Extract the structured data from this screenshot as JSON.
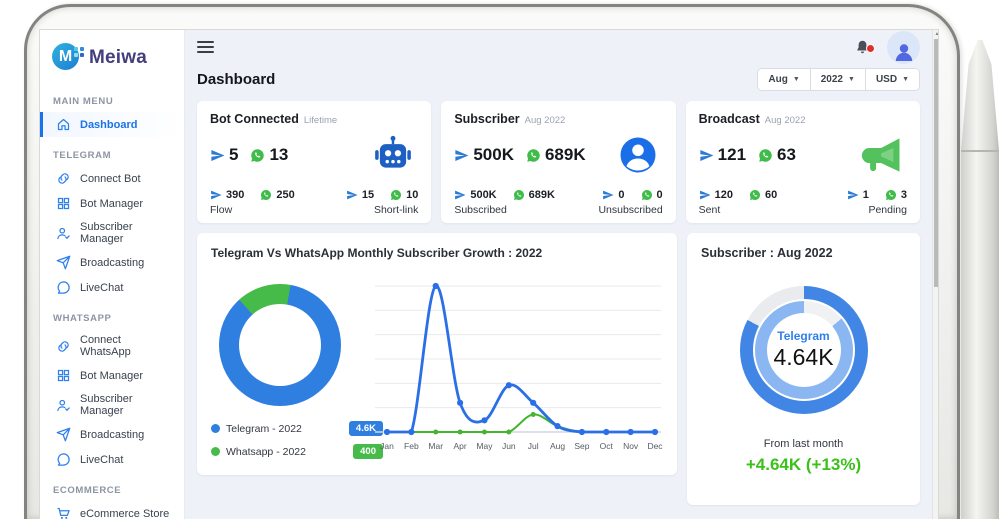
{
  "brand": {
    "name": "Meiwa"
  },
  "sidebar": {
    "sections": [
      {
        "label": "MAIN MENU",
        "items": [
          {
            "label": "Dashboard",
            "icon": "home",
            "active": true
          }
        ]
      },
      {
        "label": "TELEGRAM",
        "items": [
          {
            "label": "Connect Bot",
            "icon": "link"
          },
          {
            "label": "Bot Manager",
            "icon": "grid"
          },
          {
            "label": "Subscriber Manager",
            "icon": "user"
          },
          {
            "label": "Broadcasting",
            "icon": "send"
          },
          {
            "label": "LiveChat",
            "icon": "chat"
          }
        ]
      },
      {
        "label": "WHATSAPP",
        "items": [
          {
            "label": "Connect WhatsApp",
            "icon": "link"
          },
          {
            "label": "Bot Manager",
            "icon": "grid"
          },
          {
            "label": "Subscriber Manager",
            "icon": "user"
          },
          {
            "label": "Broadcasting",
            "icon": "send"
          },
          {
            "label": "LiveChat",
            "icon": "chat"
          }
        ]
      },
      {
        "label": "ECOMMERCE",
        "items": [
          {
            "label": "eCommerce Store",
            "icon": "cart"
          }
        ]
      }
    ]
  },
  "header": {
    "title": "Dashboard",
    "filters": [
      "Aug",
      "2022",
      "USD"
    ]
  },
  "stat_cards": [
    {
      "title": "Bot Connected",
      "period": "Lifetime",
      "illustration": "robot-icon",
      "telegram": "5",
      "whatsapp": "13",
      "groups": [
        {
          "telegram": "390",
          "whatsapp": "250",
          "label": "Flow"
        },
        {
          "telegram": "15",
          "whatsapp": "10",
          "label": "Short-link"
        }
      ]
    },
    {
      "title": "Subscriber",
      "period": "Aug 2022",
      "illustration": "user-circle-icon",
      "telegram": "500K",
      "whatsapp": "689K",
      "groups": [
        {
          "telegram": "500K",
          "whatsapp": "689K",
          "label": "Subscribed"
        },
        {
          "telegram": "0",
          "whatsapp": "0",
          "label": "Unsubscribed"
        }
      ]
    },
    {
      "title": "Broadcast",
      "period": "Aug 2022",
      "illustration": "megaphone-icon",
      "telegram": "121",
      "whatsapp": "63",
      "groups": [
        {
          "telegram": "120",
          "whatsapp": "60",
          "label": "Sent"
        },
        {
          "telegram": "1",
          "whatsapp": "3",
          "label": "Pending"
        }
      ]
    }
  ],
  "growth_card": {
    "title": "Telegram Vs WhatsApp Monthly Subscriber Growth : 2022",
    "legend": [
      {
        "label": "Telegram - 2022",
        "badge": "4.6K",
        "color": "#2f7fe0"
      },
      {
        "label": "Whatsapp - 2022",
        "badge": "400",
        "color": "#47bb4a"
      }
    ]
  },
  "gauge_card": {
    "title": "Subscriber : Aug 2022",
    "platform": "Telegram",
    "value": "4.64K",
    "caption": "From last month",
    "delta": "+4.64K (+13%)"
  },
  "chart_data": [
    {
      "type": "pie",
      "title": "Telegram Vs WhatsApp Monthly Subscriber Growth : 2022",
      "labels": [
        "Telegram - 2022",
        "Whatsapp - 2022"
      ],
      "values": [
        4600,
        400
      ],
      "value_labels": [
        "4.6K",
        "400"
      ],
      "colors": [
        "#2f7fe0",
        "#47bb4a"
      ],
      "hole": 0.67,
      "legend_position": "bottom-left",
      "start_deg": -42,
      "arc_deg": 52
    },
    {
      "type": "line",
      "x": [
        "Jan",
        "Feb",
        "Mar",
        "Apr",
        "May",
        "Jun",
        "Jul",
        "Aug",
        "Sep",
        "Oct",
        "Nov",
        "Dec"
      ],
      "series": [
        {
          "name": "Telegram - 2022",
          "color": "#2a6fe8",
          "values": [
            0,
            0,
            2500,
            500,
            200,
            800,
            500,
            100,
            0,
            0,
            0,
            0
          ]
        },
        {
          "name": "Whatsapp - 2022",
          "color": "#43b52e",
          "values": [
            0,
            0,
            0,
            0,
            0,
            0,
            300,
            100,
            0,
            0,
            0,
            0
          ]
        }
      ],
      "ylim": [
        0,
        2500
      ],
      "grid": true,
      "xlabel": "",
      "ylabel": ""
    },
    {
      "type": "donut-gauge",
      "title": "Subscriber : Aug 2022",
      "label": "Telegram",
      "value": "4.64K",
      "outer_fill_deg": 298,
      "inner_fill_deg": 310,
      "inner_start_deg": 50,
      "colors": {
        "outer": "#4286e5",
        "inner": "#8ab6f2",
        "track": "#e9ebee"
      }
    }
  ],
  "colors": {
    "primary": "#1a73e8",
    "telegram": "#2b7bd3",
    "whatsapp": "#3fbc49",
    "delta_green": "#3cc11a",
    "brand_text": "#433e7d",
    "background": "#eef2f8"
  }
}
